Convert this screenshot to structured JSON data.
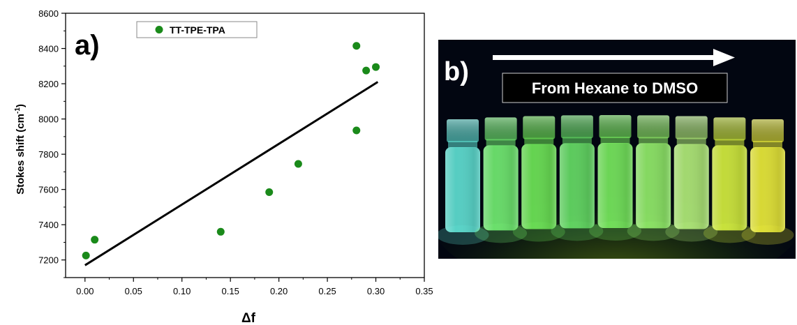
{
  "chart_data": {
    "type": "scatter",
    "panel_label": "a)",
    "xlabel": "Δf",
    "ylabel_main": "Stokes shift (cm",
    "ylabel_sup": "-1",
    "ylabel_tail": ")",
    "xlim": [
      -0.02,
      0.35
    ],
    "ylim": [
      7100,
      8600
    ],
    "x_ticks": [
      0.0,
      0.05,
      0.1,
      0.15,
      0.2,
      0.25,
      0.3,
      0.35
    ],
    "x_tick_labels": [
      "0.00",
      "0.05",
      "0.10",
      "0.15",
      "0.20",
      "0.25",
      "0.30",
      "0.35"
    ],
    "y_ticks": [
      7200,
      7400,
      7600,
      7800,
      8000,
      8200,
      8400,
      8600
    ],
    "y_tick_labels": [
      "7200",
      "7400",
      "7600",
      "7800",
      "8000",
      "8200",
      "8400",
      "8600"
    ],
    "grid": false,
    "legend_position": "top-left",
    "series": [
      {
        "name": "TT-TPE-TPA",
        "color": "#1a8a1a",
        "x": [
          0.001,
          0.01,
          0.14,
          0.19,
          0.22,
          0.28,
          0.28,
          0.29,
          0.3
        ],
        "y": [
          7225,
          7315,
          7360,
          7585,
          7745,
          7935,
          8415,
          8275,
          8295
        ]
      }
    ],
    "fit_line": {
      "x": [
        0.0,
        0.302
      ],
      "y": [
        7170,
        8210
      ],
      "color": "#000000"
    }
  },
  "photo": {
    "panel_label": "b)",
    "caption": "From Hexane to DMSO",
    "vial_colors": [
      "#5fe3d6",
      "#72ef72",
      "#6fea58",
      "#66e066",
      "#78ec5e",
      "#93f06a",
      "#b4f07a",
      "#d7f23e",
      "#eef03a"
    ]
  }
}
